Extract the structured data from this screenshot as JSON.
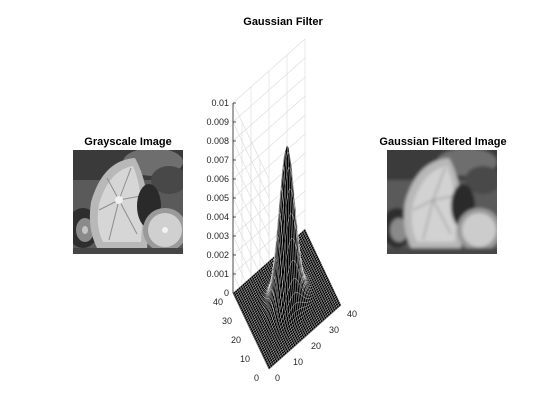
{
  "figure": {
    "left_panel_title": "Grayscale Image",
    "center_panel_title": "Gaussian Filter",
    "right_panel_title": "Gaussian Filtered Image"
  },
  "chart_data": {
    "type": "surface",
    "title": "Gaussian Filter",
    "xlabel": "",
    "ylabel": "",
    "zlabel": "",
    "x_range": [
      0,
      40
    ],
    "y_range": [
      0,
      40
    ],
    "z_range": [
      0,
      0.01
    ],
    "x_ticks": [
      "0",
      "10",
      "20",
      "30",
      "40"
    ],
    "y_ticks": [
      "0",
      "10",
      "20",
      "30",
      "40"
    ],
    "z_ticks": [
      "0",
      "0.001",
      "0.002",
      "0.003",
      "0.004",
      "0.005",
      "0.006",
      "0.007",
      "0.008",
      "0.009",
      "0.01"
    ],
    "gaussian": {
      "center_x": 20,
      "center_y": 20,
      "sigma": 4,
      "peak": 0.0081
    },
    "grid": true,
    "colors": {
      "surface": "#000000",
      "grid": "#dedede",
      "axis": "#262626"
    }
  },
  "images": {
    "left": {
      "blur": 0
    },
    "right": {
      "blur": 1.6
    }
  }
}
